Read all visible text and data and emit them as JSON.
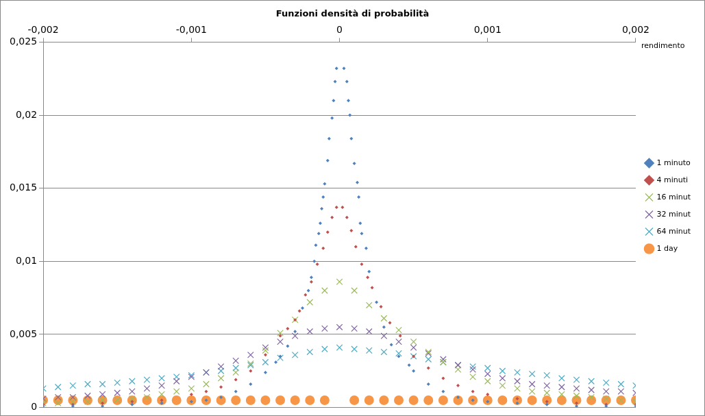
{
  "chart_data": {
    "type": "scatter",
    "title": "Funzioni densità di probabilità",
    "xlabel": "rendimento",
    "x": [
      -0.002,
      -0.0019,
      -0.0018,
      -0.0017,
      -0.0016,
      -0.0015,
      -0.0014,
      -0.0013,
      -0.0012,
      -0.0011,
      -0.001,
      -0.0009,
      -0.0008,
      -0.0007,
      -0.0006,
      -0.0005,
      -0.0004,
      -0.0003,
      -0.0002,
      -0.0001,
      0,
      0.0001,
      0.0002,
      0.0003,
      0.0004,
      0.0005,
      0.0006,
      0.0007,
      0.0008,
      0.0009,
      0.001,
      0.0011,
      0.0012,
      0.0013,
      0.0014,
      0.0015,
      0.0016,
      0.0017,
      0.0018,
      0.0019,
      0.002
    ],
    "series": [
      {
        "name": "1 minuto",
        "color": "#4f81bd",
        "marker": "diamond",
        "x": [
          -0.002,
          -0.0018,
          -0.0016,
          -0.0014,
          -0.0012,
          -0.001,
          -0.0009,
          -0.0008,
          -0.0007,
          -0.0006,
          -0.0005,
          -0.00043,
          -0.0004,
          -0.00035,
          -0.0003,
          -0.00025,
          -0.00021,
          -0.00019,
          -0.00017,
          -0.00016,
          -0.00014,
          -0.00013,
          -0.00012,
          -0.00011,
          -0.0001,
          -8e-05,
          -7e-05,
          -5e-05,
          -4e-05,
          -3e-05,
          -2e-05,
          3e-05,
          5e-05,
          6e-05,
          7e-05,
          8e-05,
          0.0001,
          0.00012,
          0.00013,
          0.00014,
          0.00015,
          0.00018,
          0.0002,
          0.00025,
          0.0003,
          0.00035,
          0.0004,
          0.00047,
          0.0005,
          0.0006,
          0.0007,
          0.0008,
          0.0009,
          0.001,
          0.0012,
          0.0014,
          0.0016,
          0.0018,
          0.002
        ],
        "values": [
          0.0001,
          0.0001,
          0.0001,
          0.0002,
          0.0003,
          0.0004,
          0.0005,
          0.0007,
          0.0011,
          0.0016,
          0.0024,
          0.0031,
          0.0035,
          0.0042,
          0.0052,
          0.0068,
          0.008,
          0.0089,
          0.01,
          0.0111,
          0.0119,
          0.0126,
          0.0136,
          0.0144,
          0.0153,
          0.0169,
          0.0184,
          0.0198,
          0.021,
          0.0223,
          0.0232,
          0.0232,
          0.0223,
          0.021,
          0.02,
          0.0184,
          0.0167,
          0.0154,
          0.0144,
          0.0126,
          0.0119,
          0.0109,
          0.0093,
          0.0072,
          0.0055,
          0.0043,
          0.0035,
          0.0029,
          0.0025,
          0.0016,
          0.0011,
          0.0007,
          0.0005,
          0.0004,
          0.0003,
          0.0002,
          0.0001,
          0.0001,
          0.0001
        ]
      },
      {
        "name": "4 minuti",
        "color": "#c0504d",
        "marker": "diamond",
        "x": [
          -0.002,
          -0.0018,
          -0.0016,
          -0.0014,
          -0.0012,
          -0.001,
          -0.0009,
          -0.0008,
          -0.0007,
          -0.0006,
          -0.0005,
          -0.0004,
          -0.00035,
          -0.0003,
          -0.00027,
          -0.00023,
          -0.00019,
          -0.00015,
          -0.00011,
          -8e-05,
          -5e-05,
          -2e-05,
          2e-05,
          5e-05,
          8e-05,
          0.00011,
          0.00015,
          0.00019,
          0.00022,
          0.00028,
          0.00034,
          0.00041,
          0.0005,
          0.0006,
          0.0007,
          0.0008,
          0.0009,
          0.001,
          0.0012,
          0.0014,
          0.0016,
          0.0018,
          0.002
        ],
        "values": [
          0.0002,
          0.0002,
          0.0003,
          0.0004,
          0.0005,
          0.0009,
          0.0011,
          0.0014,
          0.0019,
          0.0025,
          0.0036,
          0.0049,
          0.0054,
          0.006,
          0.0066,
          0.0077,
          0.0086,
          0.0098,
          0.0109,
          0.012,
          0.013,
          0.0137,
          0.0137,
          0.013,
          0.0121,
          0.011,
          0.0098,
          0.0089,
          0.0082,
          0.0069,
          0.0058,
          0.0049,
          0.0035,
          0.0027,
          0.002,
          0.0015,
          0.0011,
          0.0009,
          0.0006,
          0.0004,
          0.0003,
          0.0002,
          0.0002
        ]
      },
      {
        "name": "16 minut",
        "color": "#9bbb59",
        "marker": "cross",
        "values": [
          0.0003,
          0.0003,
          0.0004,
          0.0004,
          0.0005,
          0.0005,
          0.0006,
          0.0007,
          0.0009,
          0.0011,
          0.0013,
          0.0016,
          0.002,
          0.0024,
          0.003,
          0.0039,
          0.0051,
          0.006,
          0.0072,
          0.008,
          0.0086,
          0.008,
          0.007,
          0.0061,
          0.0053,
          0.0045,
          0.0038,
          0.0031,
          0.0026,
          0.0021,
          0.0018,
          0.0015,
          0.0013,
          0.0011,
          0.001,
          0.0009,
          0.0008,
          0.0007,
          0.0006,
          0.0005,
          0.0004
        ]
      },
      {
        "name": "32 minut",
        "color": "#8064a2",
        "marker": "cross",
        "values": [
          0.0006,
          0.0007,
          0.0007,
          0.0008,
          0.0009,
          0.001,
          0.0011,
          0.0013,
          0.0015,
          0.0018,
          0.0021,
          0.0024,
          0.0028,
          0.0032,
          0.0036,
          0.0041,
          0.0045,
          0.0049,
          0.0052,
          0.0054,
          0.0055,
          0.0054,
          0.0052,
          0.0049,
          0.0045,
          0.0041,
          0.0037,
          0.0033,
          0.0029,
          0.0026,
          0.0023,
          0.002,
          0.0018,
          0.0016,
          0.0015,
          0.0014,
          0.0013,
          0.0012,
          0.0011,
          0.0011,
          0.001
        ]
      },
      {
        "name": "64 minut",
        "color": "#4bacc6",
        "marker": "cross",
        "values": [
          0.0013,
          0.0014,
          0.0015,
          0.0016,
          0.0016,
          0.0017,
          0.0018,
          0.0019,
          0.002,
          0.0021,
          0.0022,
          0.0024,
          0.0025,
          0.0027,
          0.0029,
          0.0031,
          0.0034,
          0.0036,
          0.0038,
          0.004,
          0.0041,
          0.004,
          0.0039,
          0.0038,
          0.0037,
          0.0035,
          0.0033,
          0.0031,
          0.0029,
          0.0028,
          0.0027,
          0.0025,
          0.0024,
          0.0023,
          0.0022,
          0.002,
          0.0019,
          0.0018,
          0.0017,
          0.0016,
          0.0015
        ]
      },
      {
        "name": "1 day",
        "color": "#f79646",
        "marker": "circle",
        "values": [
          0.0005,
          0.0005,
          0.0005,
          0.0005,
          0.0005,
          0.0005,
          0.0005,
          0.0005,
          0.0005,
          0.0005,
          0.0005,
          0.0005,
          0.0005,
          0.0005,
          0.0005,
          0.0005,
          0.0005,
          0.0005,
          0.0005,
          0.0005,
          null,
          0.0005,
          0.0005,
          0.0005,
          0.0005,
          0.0005,
          0.0005,
          0.0005,
          0.0005,
          0.0005,
          0.0005,
          0.0005,
          0.0005,
          0.0005,
          0.0005,
          0.0005,
          0.0005,
          0.0005,
          0.0005,
          0.0005,
          0.0005
        ]
      }
    ],
    "xlim": [
      -0.002,
      0.002
    ],
    "xticks": [
      {
        "value": -0.002,
        "label": "-0,002"
      },
      {
        "value": -0.001,
        "label": "-0,001"
      },
      {
        "value": 0,
        "label": "0"
      },
      {
        "value": 0.001,
        "label": "0,001"
      },
      {
        "value": 0.002,
        "label": "0,002"
      }
    ],
    "ylim": [
      0,
      0.025
    ],
    "yticks": [
      {
        "value": 0,
        "label": "0"
      },
      {
        "value": 0.005,
        "label": "0,005"
      },
      {
        "value": 0.01,
        "label": "0,01"
      },
      {
        "value": 0.015,
        "label": "0,015"
      },
      {
        "value": 0.02,
        "label": "0,02"
      },
      {
        "value": 0.025,
        "label": "0,025"
      }
    ],
    "grid": "y",
    "legend": "right"
  }
}
